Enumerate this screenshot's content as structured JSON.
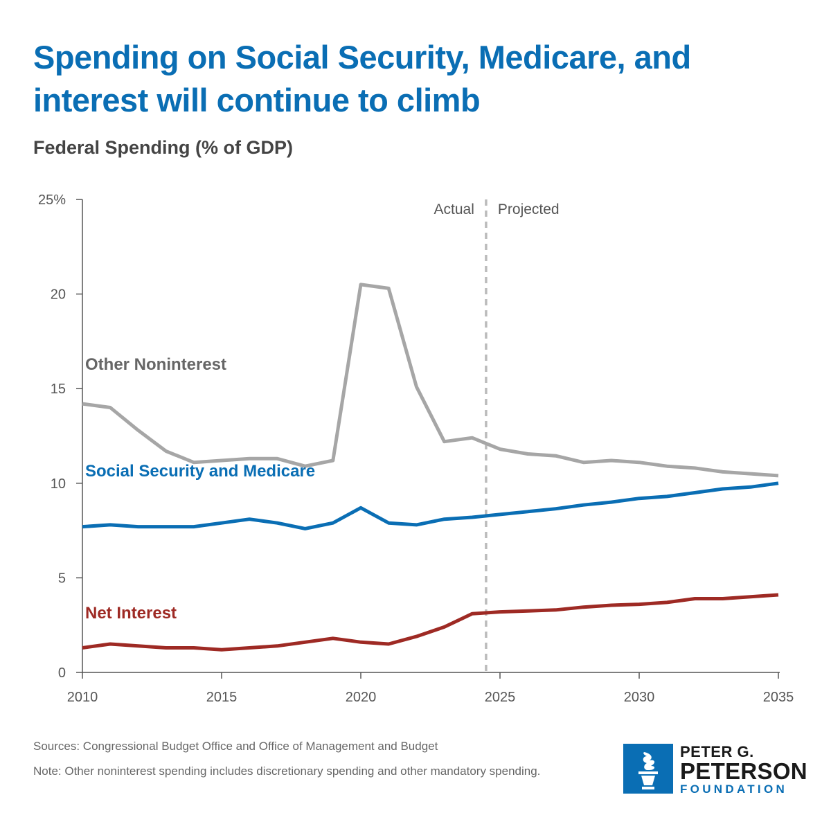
{
  "header": {
    "title": "Spending on Social Security, Medicare, and interest will continue to climb",
    "subtitle": "Federal Spending (% of GDP)"
  },
  "colors": {
    "other": "#a6a6a6",
    "ssm": "#0a6eb4",
    "interest": "#9e2a24",
    "divider": "#bbbbbb",
    "axis": "#555555"
  },
  "chart_data": {
    "type": "line",
    "title": "Federal Spending (% of GDP)",
    "xlabel": "",
    "ylabel": "",
    "xlim": [
      2010,
      2035
    ],
    "ylim": [
      0,
      25
    ],
    "x_ticks": [
      2010,
      2015,
      2020,
      2025,
      2030,
      2035
    ],
    "y_ticks": [
      0,
      5,
      10,
      15,
      20,
      25
    ],
    "y_tick_labels": [
      "0",
      "5",
      "10",
      "15",
      "20",
      "25%"
    ],
    "grid": false,
    "divider": {
      "x": 2024.5,
      "left_label": "Actual",
      "right_label": "Projected"
    },
    "x": [
      2010,
      2011,
      2012,
      2013,
      2014,
      2015,
      2016,
      2017,
      2018,
      2019,
      2020,
      2021,
      2022,
      2023,
      2024,
      2025,
      2026,
      2027,
      2028,
      2029,
      2030,
      2031,
      2032,
      2033,
      2034,
      2035
    ],
    "series": [
      {
        "key": "other",
        "name": "Other Noninterest",
        "values": [
          14.2,
          14.0,
          12.8,
          11.7,
          11.1,
          11.2,
          11.3,
          11.3,
          10.9,
          11.2,
          20.5,
          20.3,
          15.1,
          12.2,
          12.4,
          11.8,
          11.55,
          11.45,
          11.1,
          11.2,
          11.1,
          10.9,
          10.8,
          10.6,
          10.5,
          10.4
        ]
      },
      {
        "key": "ssm",
        "name": "Social Security and Medicare",
        "values": [
          7.7,
          7.8,
          7.7,
          7.7,
          7.7,
          7.9,
          8.1,
          7.9,
          7.6,
          7.9,
          8.7,
          7.9,
          7.8,
          8.1,
          8.2,
          8.35,
          8.5,
          8.65,
          8.85,
          9.0,
          9.2,
          9.3,
          9.5,
          9.7,
          9.8,
          10.0
        ]
      },
      {
        "key": "interest",
        "name": "Net Interest",
        "values": [
          1.3,
          1.5,
          1.4,
          1.3,
          1.3,
          1.2,
          1.3,
          1.4,
          1.6,
          1.8,
          1.6,
          1.5,
          1.9,
          2.4,
          3.1,
          3.2,
          3.25,
          3.3,
          3.45,
          3.55,
          3.6,
          3.7,
          3.9,
          3.9,
          4.0,
          4.1
        ]
      }
    ]
  },
  "footer": {
    "sources": "Sources: Congressional Budget Office and Office of Management and Budget",
    "note": "Note: Other noninterest spending includes discretionary spending and other mandatory spending."
  },
  "logo": {
    "line1": "PETER G.",
    "line2": "PETERSON",
    "line3": "FOUNDATION"
  }
}
